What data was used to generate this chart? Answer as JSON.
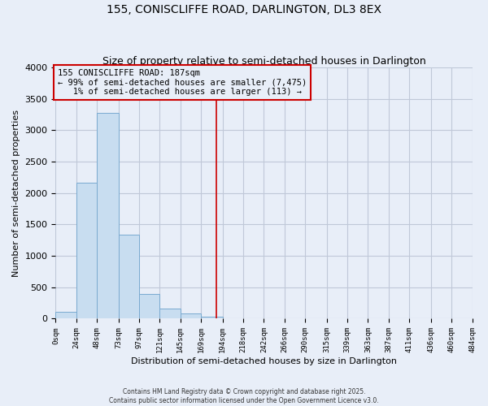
{
  "title": "155, CONISCLIFFE ROAD, DARLINGTON, DL3 8EX",
  "subtitle": "Size of property relative to semi-detached houses in Darlington",
  "xlabel": "Distribution of semi-detached houses by size in Darlington",
  "ylabel": "Number of semi-detached properties",
  "bar_values": [
    110,
    2170,
    3280,
    1340,
    390,
    160,
    90,
    30,
    10,
    0,
    0,
    0,
    0,
    0,
    0,
    0,
    0,
    0,
    0,
    0
  ],
  "bin_edges": [
    0,
    24,
    48,
    73,
    97,
    121,
    145,
    169,
    194,
    218,
    242,
    266,
    290,
    315,
    339,
    363,
    387,
    411,
    436,
    460,
    484
  ],
  "tick_labels": [
    "0sqm",
    "24sqm",
    "48sqm",
    "73sqm",
    "97sqm",
    "121sqm",
    "145sqm",
    "169sqm",
    "194sqm",
    "218sqm",
    "242sqm",
    "266sqm",
    "290sqm",
    "315sqm",
    "339sqm",
    "363sqm",
    "387sqm",
    "411sqm",
    "436sqm",
    "460sqm",
    "484sqm"
  ],
  "bar_color": "#c8ddf0",
  "bar_edge_color": "#7aaad0",
  "vline_x": 187,
  "vline_color": "#cc0000",
  "annotation_line1": "155 CONISCLIFFE ROAD: 187sqm",
  "annotation_line2": "← 99% of semi-detached houses are smaller (7,475)",
  "annotation_line3": "   1% of semi-detached houses are larger (113) →",
  "annotation_box_color": "#cc0000",
  "ylim": [
    0,
    4000
  ],
  "yticks": [
    0,
    500,
    1000,
    1500,
    2000,
    2500,
    3000,
    3500,
    4000
  ],
  "grid_color": "#c0c8d8",
  "bg_color": "#e8eef8",
  "footnote": "Contains HM Land Registry data © Crown copyright and database right 2025.\nContains public sector information licensed under the Open Government Licence v3.0.",
  "title_fontsize": 10,
  "subtitle_fontsize": 9,
  "xlabel_fontsize": 8,
  "ylabel_fontsize": 8,
  "annotation_fontsize": 7.5,
  "tick_fontsize": 6.5
}
